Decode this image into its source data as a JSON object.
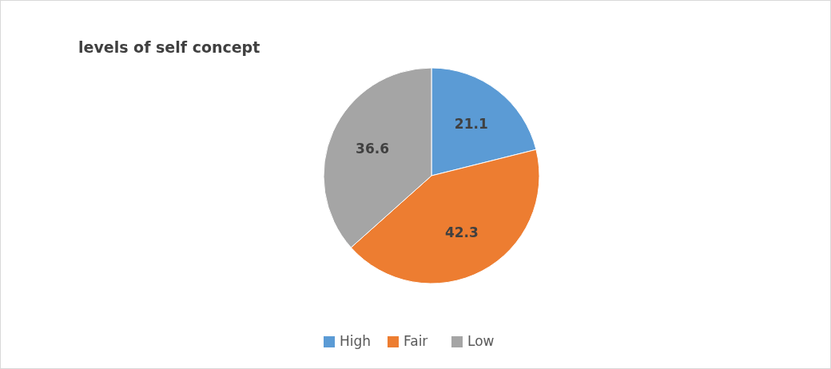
{
  "chart_data": {
    "type": "pie",
    "title": "levels of self concept",
    "categories": [
      "High",
      "Fair",
      "Low"
    ],
    "values": [
      21.1,
      42.3,
      36.6
    ],
    "colors": [
      "#5b9bd5",
      "#ed7d31",
      "#a5a5a5"
    ],
    "data_labels": true,
    "legend": "bottom"
  }
}
